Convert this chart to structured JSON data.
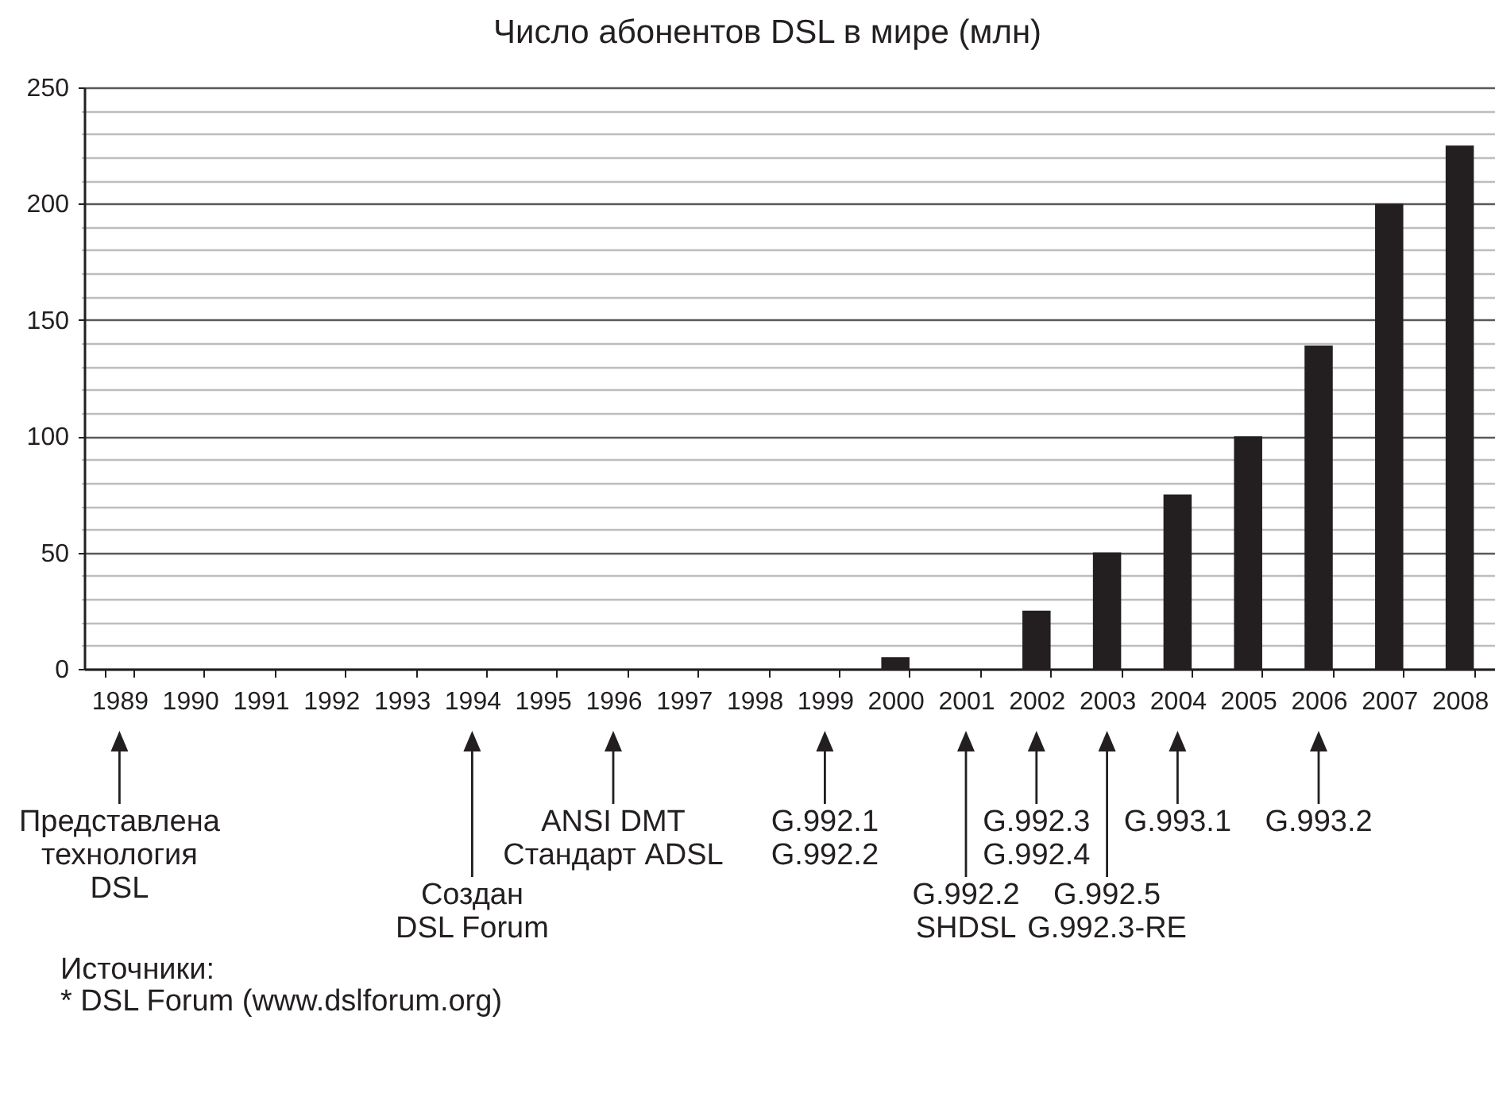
{
  "chart_data": {
    "type": "bar",
    "title": "Число абонентов DSL в мире (млн)",
    "categories": [
      "1989",
      "1990",
      "1991",
      "1992",
      "1993",
      "1994",
      "1995",
      "1996",
      "1997",
      "1998",
      "1999",
      "2000",
      "2001",
      "2002",
      "2003",
      "2004",
      "2005",
      "2006",
      "2007",
      "2008"
    ],
    "values": [
      null,
      null,
      null,
      null,
      null,
      null,
      null,
      null,
      null,
      null,
      null,
      5,
      null,
      25,
      50,
      75,
      100,
      139,
      200,
      225
    ],
    "color": "#231f20",
    "ylim": [
      0,
      250
    ],
    "yticks": [
      0,
      {
        "value": 10,
        "label": null
      },
      {
        "value": 20,
        "label": null
      },
      {
        "value": 30,
        "label": null
      },
      {
        "value": 40,
        "label": null
      },
      50,
      {
        "value": 60,
        "label": null
      },
      {
        "value": 70,
        "label": null
      },
      {
        "value": 80,
        "label": null
      },
      {
        "value": 90,
        "label": null
      },
      100,
      {
        "value": 110,
        "label": null
      },
      {
        "value": 120,
        "label": null
      },
      {
        "value": 130,
        "label": null
      },
      {
        "value": 140,
        "label": null
      },
      150,
      {
        "value": 160,
        "label": null
      },
      {
        "value": 170,
        "label": null
      },
      {
        "value": 180,
        "label": null
      },
      {
        "value": 190,
        "label": null
      },
      200,
      {
        "value": 210,
        "label": null
      },
      {
        "value": 220,
        "label": null
      },
      {
        "value": 230,
        "label": null
      },
      {
        "value": 240,
        "label": null
      },
      250
    ],
    "grid": true,
    "annotations": [
      "Представлена\nтехнология\nDSL",
      "Создан\nDSL Forum",
      "ANSI DMT\nСтандарт ADSL",
      "G.992.1\nG.992.2",
      "G.992.2\nSHDSL",
      "G.992.3\nG.992.4",
      "G.992.5\nG.992.3-RE",
      "G.993.1",
      "G.993.2",
      "Источники:",
      "* DSL Forum (www.dslforum.org)"
    ]
  }
}
